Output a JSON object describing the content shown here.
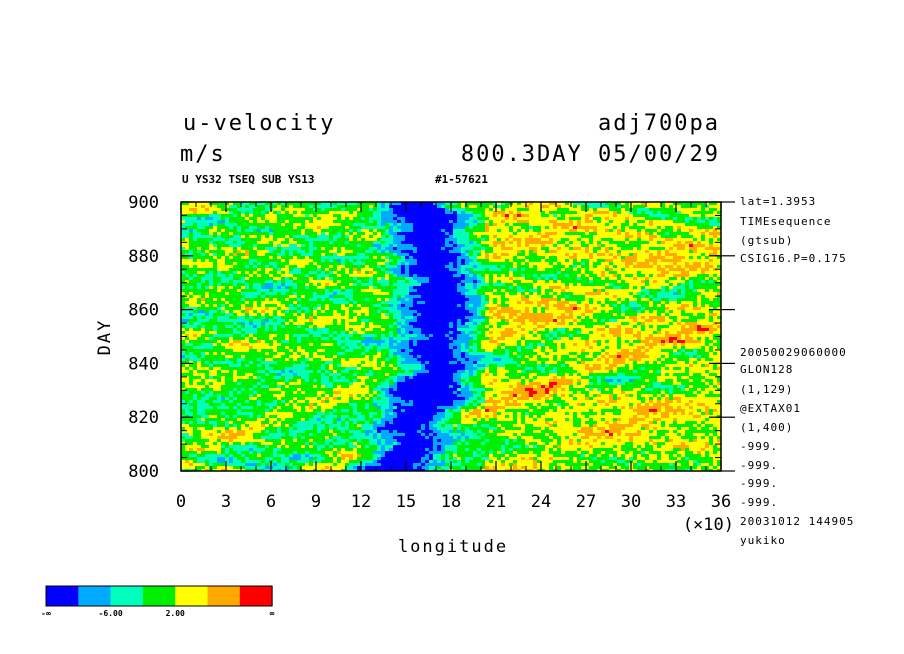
{
  "header": {
    "variable": "u-velocity",
    "units": "m/s",
    "dataset": "adj700pa",
    "time_info": "800.3DAY 05/00/29",
    "sub_id": "U YS32 TSEQ SUB YS13",
    "run_id": "#1-57621"
  },
  "side_info": [
    "lat=1.3953",
    "TIMEsequence",
    "(gtsub)",
    "CSIG16.P=0.175",
    "20050029060000",
    "GLON128",
    "(1,129)",
    "@EXTAX01",
    "(1,400)",
    "-999.",
    "-999.",
    "-999.",
    "-999.",
    "20031012 144905",
    "yukiko"
  ],
  "colorbar": {
    "colors": [
      "#0000ff",
      "#00aaff",
      "#00ffbb",
      "#00ee00",
      "#ffff00",
      "#ffaa00",
      "#ff0000"
    ],
    "labels": [
      "-∞",
      "-6.00",
      "2.00",
      "∞"
    ]
  },
  "chart_data": {
    "type": "heatmap",
    "xlabel": "longitude",
    "ylabel": "DAY",
    "x_multiplier": "(×10)",
    "xlim": [
      0,
      36
    ],
    "ylim": [
      800,
      900
    ],
    "x_ticks": [
      "0",
      "3",
      "6",
      "9",
      "12",
      "15",
      "18",
      "21",
      "24",
      "27",
      "30",
      "33",
      "36"
    ],
    "y_ticks": [
      "800",
      "820",
      "840",
      "860",
      "880",
      "900"
    ],
    "y_tick_values": [
      800,
      820,
      840,
      860,
      880,
      900
    ],
    "color_levels": [
      "#0000ff",
      "#00aaff",
      "#00ffbb",
      "#00ee00",
      "#ffff00",
      "#ffaa00",
      "#ff0000"
    ],
    "note_features": [
      {
        "description": "strong negative (blue) band",
        "x_range": [
          11,
          18
        ],
        "y_range": [
          800,
          900
        ]
      },
      {
        "description": "positive (red) streaks",
        "x_range": [
          19,
          36
        ],
        "y_range": [
          800,
          900
        ]
      }
    ]
  }
}
